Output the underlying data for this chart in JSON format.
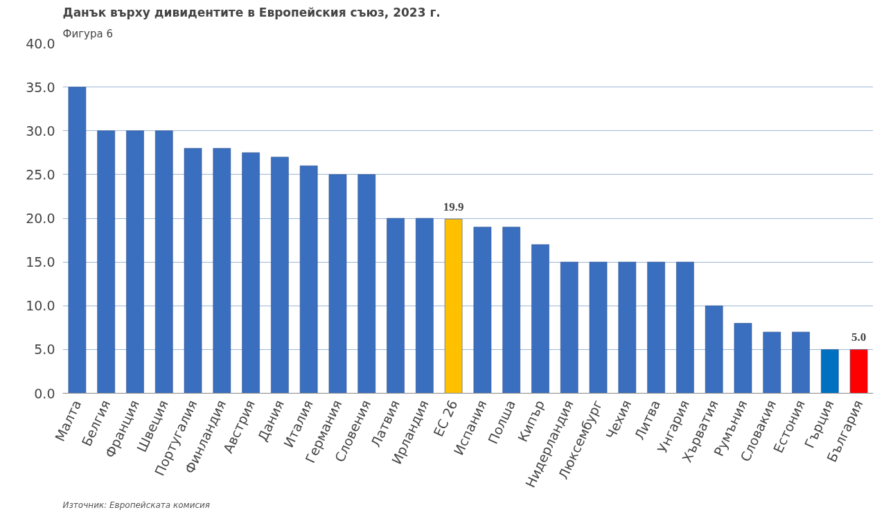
{
  "chart_data": {
    "type": "bar",
    "title": "Данък върху дивидентите в Европейския съюз, 2023 г.",
    "annotations": [
      "Фигура 6",
      "Източник: Европейската комисия"
    ],
    "categories": [
      "Малта",
      "Белгия",
      "Франция",
      "Швеция",
      "Португалия",
      "Финландия",
      "Австрия",
      "Дания",
      "Италия",
      "Германия",
      "Словения",
      "Латвия",
      "Ирландия",
      "ЕС 26",
      "Испания",
      "Полша",
      "Кипър",
      "Нидерландия",
      "Люксембург",
      "Чехия",
      "Литва",
      "Унгария",
      "Хърватия",
      "Румъния",
      "Словакия",
      "Естония",
      "Гърция",
      "България"
    ],
    "values": [
      35,
      30,
      30,
      30,
      28,
      28,
      27.5,
      27,
      26,
      25,
      25,
      20,
      20,
      19.9,
      19,
      19,
      17,
      15,
      15,
      15,
      15,
      15,
      10,
      8,
      7,
      7,
      5,
      5
    ],
    "colors": [
      "#3a6fbf",
      "#3a6fbf",
      "#3a6fbf",
      "#3a6fbf",
      "#3a6fbf",
      "#3a6fbf",
      "#3a6fbf",
      "#3a6fbf",
      "#3a6fbf",
      "#3a6fbf",
      "#3a6fbf",
      "#3a6fbf",
      "#3a6fbf",
      "#ffc000",
      "#3a6fbf",
      "#3a6fbf",
      "#3a6fbf",
      "#3a6fbf",
      "#3a6fbf",
      "#3a6fbf",
      "#3a6fbf",
      "#3a6fbf",
      "#3a6fbf",
      "#3a6fbf",
      "#3a6fbf",
      "#3a6fbf",
      "#0070c0",
      "#ff0000"
    ],
    "value_labels": [
      null,
      null,
      null,
      null,
      null,
      null,
      null,
      null,
      null,
      null,
      null,
      null,
      null,
      "19.9",
      null,
      null,
      null,
      null,
      null,
      null,
      null,
      null,
      null,
      null,
      null,
      null,
      null,
      "5.0"
    ],
    "ylim": [
      0,
      40
    ],
    "yticks": [
      {
        "value": 0,
        "label": "0.0"
      },
      {
        "value": 5,
        "label": "5.0"
      },
      {
        "value": 10,
        "label": "10.0"
      },
      {
        "value": 15,
        "label": "15.0"
      },
      {
        "value": 20,
        "label": "20.0"
      },
      {
        "value": 25,
        "label": "25.0"
      },
      {
        "value": 30,
        "label": "30.0"
      },
      {
        "value": 35,
        "label": "35.0"
      },
      {
        "value": 40,
        "label": "40.0"
      }
    ],
    "grid": "y"
  }
}
